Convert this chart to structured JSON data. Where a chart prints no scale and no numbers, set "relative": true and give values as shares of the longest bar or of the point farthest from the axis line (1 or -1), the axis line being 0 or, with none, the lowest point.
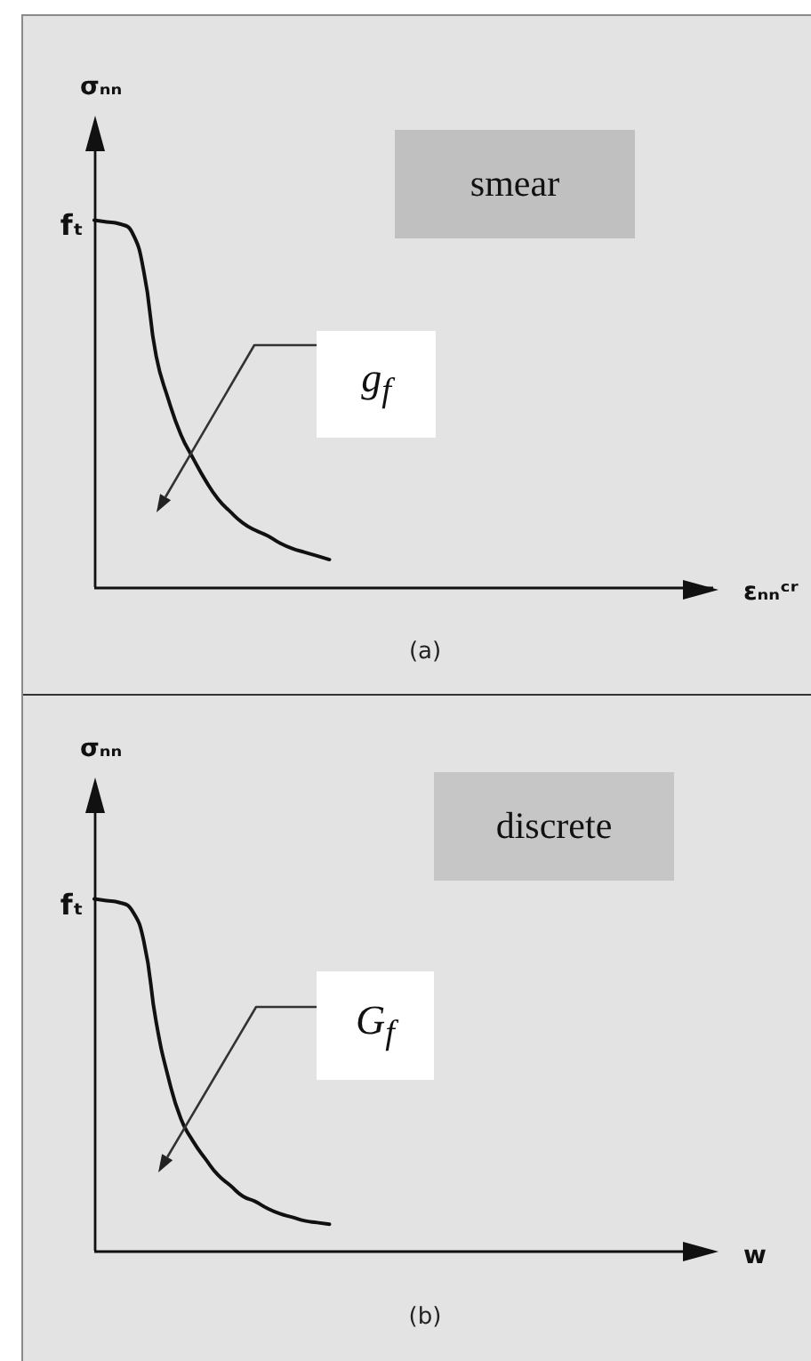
{
  "chart_data": [
    {
      "type": "line",
      "relative": true,
      "ylabel": "σₙₙ",
      "xlabel": "εₙₙᶜʳ",
      "color": "#111111",
      "marker": "none",
      "grid": false,
      "categories": [
        null,
        null,
        null,
        null,
        null,
        null,
        null,
        null,
        null,
        null,
        null,
        null,
        null,
        null,
        null,
        null,
        null,
        null,
        null,
        null,
        null,
        null,
        null,
        null,
        null,
        null,
        null,
        null,
        null,
        null,
        null,
        null,
        null,
        null,
        null,
        null,
        null,
        null,
        null,
        null,
        null,
        null,
        null,
        null,
        null,
        null,
        null,
        null,
        null,
        null,
        null
      ],
      "values": [
        1.0,
        0.995,
        0.99,
        0.97,
        0.86,
        0.63,
        0.51,
        0.415,
        0.35,
        0.29,
        0.24,
        0.205,
        0.175,
        0.155,
        0.14,
        0.12,
        0.105,
        0.095,
        0.085,
        0.075,
        null,
        null,
        null,
        null,
        null,
        null,
        null,
        null,
        null,
        null,
        null,
        null,
        null,
        null,
        null,
        null,
        null,
        null,
        null,
        null,
        null,
        null,
        null,
        null,
        null,
        null,
        null,
        null,
        null,
        null,
        null
      ],
      "annotations": [
        "smear",
        "g$_{f}$",
        "(a)",
        "fₜ"
      ]
    },
    {
      "type": "line",
      "relative": true,
      "ylabel": "σₙₙ",
      "xlabel": "w",
      "color": "#111111",
      "marker": "none",
      "grid": false,
      "categories": [
        null,
        null,
        null,
        null,
        null,
        null,
        null,
        null,
        null,
        null,
        null,
        null,
        null,
        null,
        null,
        null,
        null,
        null,
        null,
        null,
        null,
        null,
        null,
        null,
        null,
        null,
        null,
        null,
        null,
        null,
        null,
        null,
        null,
        null,
        null,
        null,
        null,
        null,
        null,
        null,
        null,
        null,
        null,
        null,
        null,
        null,
        null,
        null,
        null,
        null,
        null
      ],
      "values": [
        1.0,
        0.995,
        0.99,
        0.97,
        0.88,
        0.65,
        0.49,
        0.375,
        0.31,
        0.26,
        0.215,
        0.185,
        0.155,
        0.14,
        0.12,
        0.105,
        0.095,
        0.085,
        0.08,
        0.075,
        null,
        null,
        null,
        null,
        null,
        null,
        null,
        null,
        null,
        null,
        null,
        null,
        null,
        null,
        null,
        null,
        null,
        null,
        null,
        null,
        null,
        null,
        null,
        null,
        null,
        null,
        null,
        null,
        null,
        null,
        null
      ],
      "annotations": [
        "discrete",
        "G$_{f}$",
        "(b)",
        "fₜ"
      ]
    }
  ]
}
